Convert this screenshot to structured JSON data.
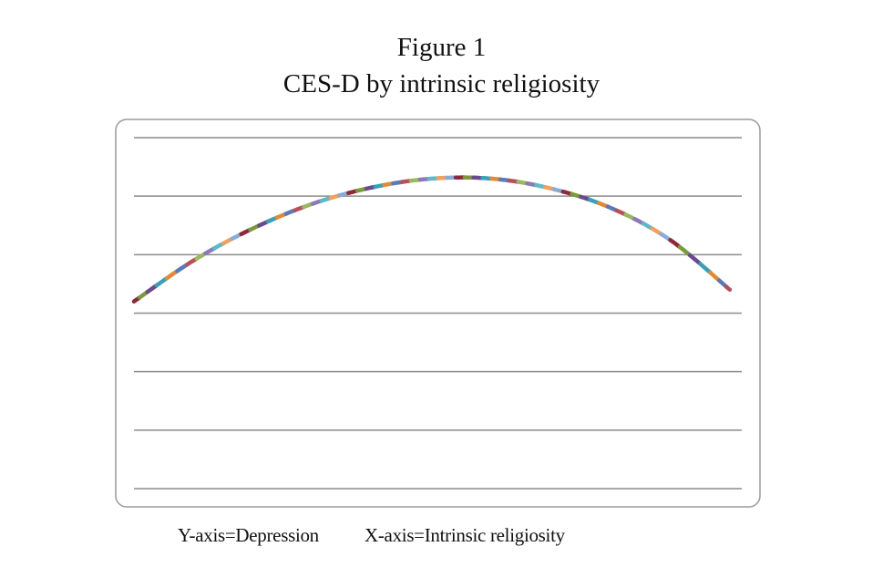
{
  "figure": {
    "number": "Figure 1",
    "title": "CES-D by intrinsic religiosity",
    "y_caption": "Y-axis=Depression",
    "x_caption": "X-axis=Intrinsic religiosity"
  },
  "chart_data": {
    "type": "line",
    "title": "CES-D by intrinsic religiosity",
    "xlabel": "Intrinsic religiosity",
    "ylabel": "Depression",
    "ylim": [
      0,
      6
    ],
    "gridlines": [
      0,
      1,
      2,
      3,
      4,
      5,
      6
    ],
    "grid": true,
    "legend": "none",
    "x": [
      0,
      0.1,
      0.2,
      0.3,
      0.4,
      0.5,
      0.6,
      0.7,
      0.8,
      0.9,
      1
    ],
    "series": [
      {
        "values": [
          3.2,
          3.9,
          4.45,
          4.87,
          5.15,
          5.3,
          5.3,
          5.13,
          4.8,
          4.25,
          3.4
        ]
      }
    ],
    "dash_colors": [
      "#8b2a3a",
      "#7a9a3c",
      "#6a4a8c",
      "#3aa0b5",
      "#e08a3a",
      "#5a7ab8",
      "#b8505a",
      "#9ab860",
      "#8a7ab8",
      "#60b8c8",
      "#f0a060",
      "#8aaad8"
    ]
  }
}
